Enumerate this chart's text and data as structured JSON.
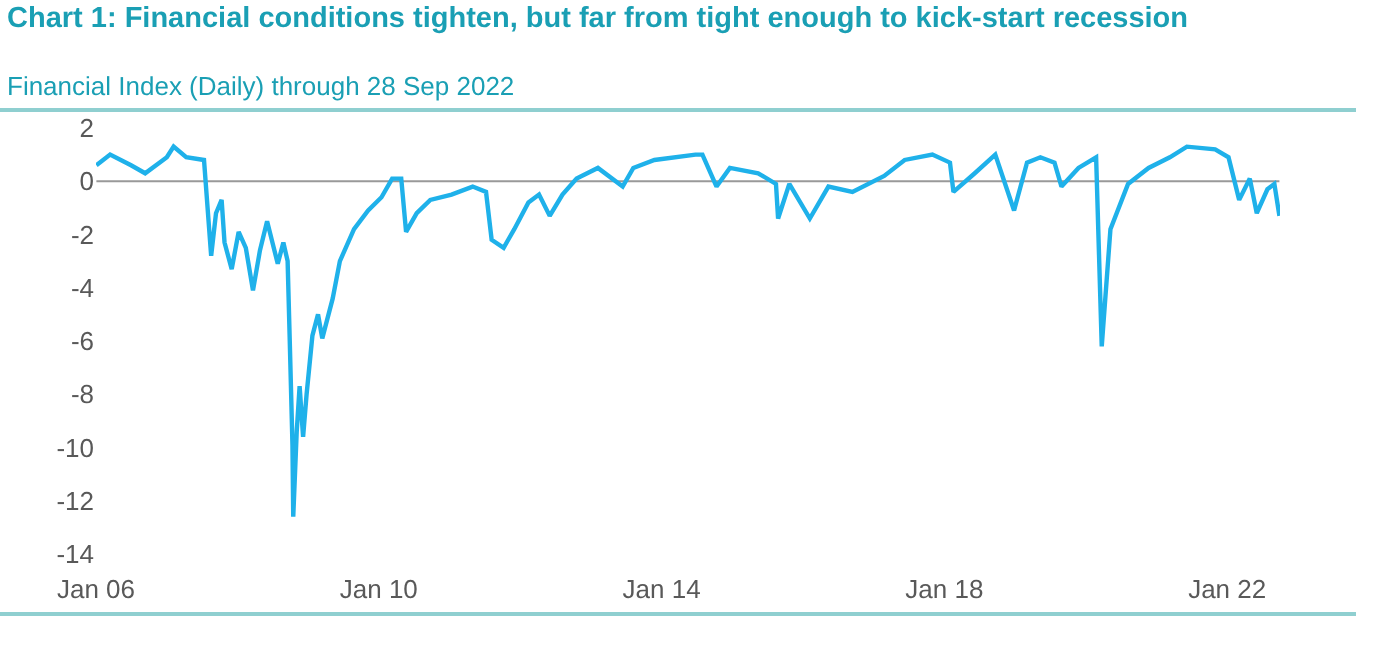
{
  "chart_data": {
    "type": "line",
    "title": "Chart 1: Financial conditions tighten, but far from tight enough to kick-start recession",
    "subtitle": "Financial Index (Daily) through 28 Sep 2022",
    "x": [
      "2006-01-03",
      "2006-03-15",
      "2006-07-01",
      "2006-09-12",
      "2007-01-02",
      "2007-02-06",
      "2007-04-12",
      "2007-07-13",
      "2007-08-19",
      "2007-09-13",
      "2007-10-12",
      "2007-10-27",
      "2007-12-03",
      "2008-01-08",
      "2008-02-14",
      "2008-03-22",
      "2008-04-27",
      "2008-06-03",
      "2008-07-28",
      "2008-08-26",
      "2008-09-17",
      "2008-09-28",
      "2008-10-12",
      "2008-10-16",
      "2008-11-03",
      "2008-11-18",
      "2008-12-06",
      "2008-12-24",
      "2009-01-23",
      "2009-02-21",
      "2009-03-15",
      "2009-05-08",
      "2009-06-14",
      "2009-08-26",
      "2009-11-07",
      "2010-01-15",
      "2010-03-11",
      "2010-04-27",
      "2010-05-22",
      "2010-07-16",
      "2010-09-24",
      "2011-01-12",
      "2011-05-01",
      "2011-07-09",
      "2011-08-07",
      "2011-10-08",
      "2011-12-02",
      "2012-02-13",
      "2012-04-08",
      "2012-06-02",
      "2012-08-07",
      "2012-10-19",
      "2013-02-06",
      "2013-06-14",
      "2013-08-08",
      "2013-11-25",
      "2014-06-25",
      "2014-07-31",
      "2014-10-12",
      "2014-12-20",
      "2015-05-15",
      "2015-08-15",
      "2015-08-26",
      "2015-10-23",
      "2016-02-06",
      "2016-05-12",
      "2016-09-13",
      "2017-02-24",
      "2017-06-10",
      "2017-10-31",
      "2018-01-30",
      "2018-02-17",
      "2018-06-07",
      "2018-09-21",
      "2018-12-27",
      "2019-03-04",
      "2019-05-12",
      "2019-07-24",
      "2019-08-29",
      "2019-11-25",
      "2020-02-24",
      "2020-03-24",
      "2020-05-08",
      "2020-08-07",
      "2020-11-21",
      "2021-03-11",
      "2021-06-07",
      "2021-10-31",
      "2022-01-08",
      "2022-03-04",
      "2022-04-28",
      "2022-06-03",
      "2022-07-28",
      "2022-09-02",
      "2022-09-28"
    ],
    "series": [
      {
        "color": "#1fb1ea",
        "values": [
          0.6,
          1.0,
          0.6,
          0.3,
          0.9,
          1.3,
          0.9,
          0.8,
          -2.8,
          -1.2,
          -0.7,
          -2.3,
          -3.3,
          -1.9,
          -2.5,
          -4.1,
          -2.6,
          -1.5,
          -3.1,
          -2.3,
          -3.0,
          -6.0,
          -9.9,
          -12.6,
          -9.4,
          -7.7,
          -9.6,
          -8.0,
          -5.8,
          -5.0,
          -5.9,
          -4.4,
          -3.0,
          -1.8,
          -1.1,
          -0.6,
          0.1,
          0.1,
          -1.9,
          -1.2,
          -0.7,
          -0.5,
          -0.2,
          -0.4,
          -2.2,
          -2.5,
          -1.8,
          -0.8,
          -0.5,
          -1.3,
          -0.5,
          0.1,
          0.5,
          -0.2,
          0.5,
          0.8,
          1.0,
          1.0,
          -0.2,
          0.5,
          0.3,
          -0.1,
          -1.4,
          -0.1,
          -1.4,
          -0.2,
          -0.4,
          0.2,
          0.8,
          1.0,
          0.7,
          -0.4,
          0.3,
          1.0,
          -1.1,
          0.7,
          0.9,
          0.7,
          -0.2,
          0.5,
          0.9,
          -6.2,
          -1.8,
          -0.1,
          0.5,
          0.9,
          1.3,
          1.2,
          0.9,
          -0.7,
          0.1,
          -1.2,
          -0.3,
          -0.1,
          -1.3
        ]
      }
    ],
    "xlim": [
      "2006-01-01",
      "2022-10-01"
    ],
    "xticks": [
      {
        "value": "2006-01-01",
        "label": "Jan 06"
      },
      {
        "value": "2010-01-01",
        "label": "Jan 10"
      },
      {
        "value": "2014-01-01",
        "label": "Jan 14"
      },
      {
        "value": "2018-01-01",
        "label": "Jan 18"
      },
      {
        "value": "2022-01-01",
        "label": "Jan 22"
      }
    ],
    "ylim": [
      -14,
      2
    ],
    "yticks": [
      -14,
      -12,
      -10,
      -8,
      -6,
      -4,
      -2,
      0,
      2
    ],
    "ref_lines": [
      {
        "axis": "y",
        "value": 0,
        "color": "#999999"
      }
    ],
    "grid": false
  }
}
